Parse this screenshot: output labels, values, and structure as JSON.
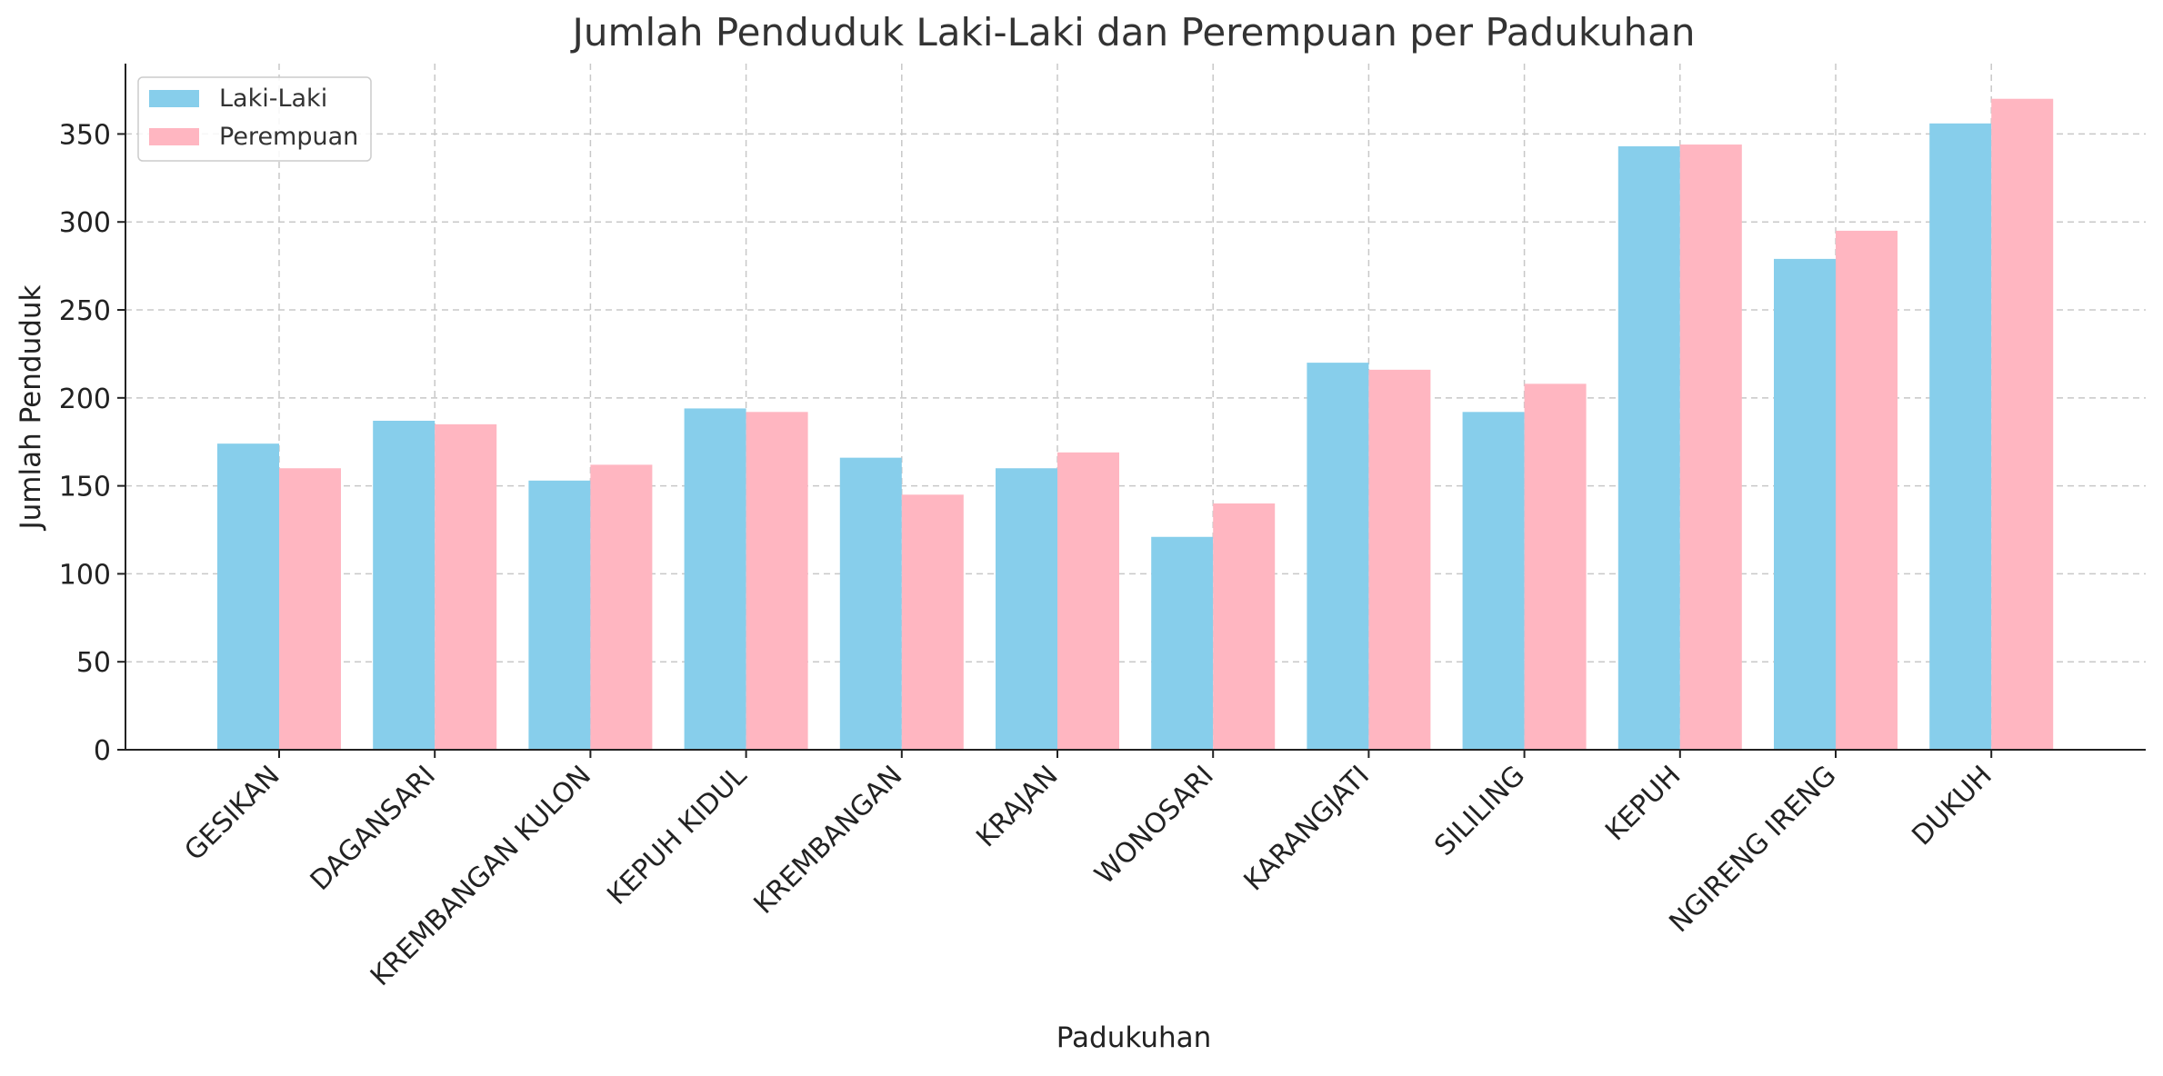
{
  "chart_data": {
    "type": "bar",
    "title": "Jumlah Penduduk Laki-Laki dan Perempuan per Padukuhan",
    "xlabel": "Padukuhan",
    "ylabel": "Jumlah Penduduk",
    "ylim": [
      0,
      390
    ],
    "yticks": [
      0,
      50,
      100,
      150,
      200,
      250,
      300,
      350
    ],
    "grid": true,
    "legend_position": "top-left",
    "categories": [
      "GESIKAN",
      "DAGANSARI",
      "KREMBANGAN KULON",
      "KEPUH KIDUL",
      "KREMBANGAN",
      "KRAJAN",
      "WONOSARI",
      "KARANGJATI",
      "SILILING",
      "KEPUH",
      "NGIRENG IRENG",
      "DUKUH"
    ],
    "series": [
      {
        "name": "Laki-Laki",
        "color": "#87ceeb",
        "values": [
          174,
          187,
          153,
          194,
          166,
          160,
          121,
          220,
          192,
          343,
          279,
          356
        ]
      },
      {
        "name": "Perempuan",
        "color": "#ffb6c1",
        "values": [
          160,
          185,
          162,
          192,
          145,
          169,
          140,
          216,
          208,
          344,
          295,
          370
        ]
      }
    ]
  }
}
